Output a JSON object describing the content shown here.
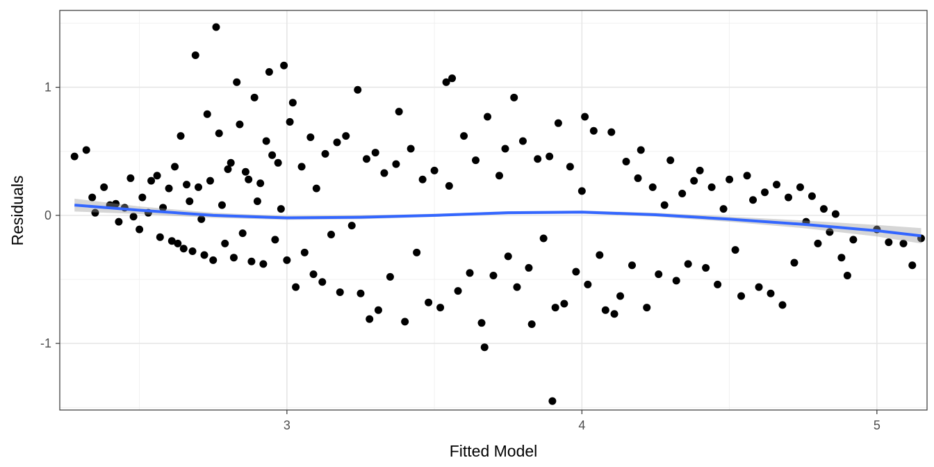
{
  "chart_data": {
    "type": "scatter",
    "title": "",
    "xlabel": "Fitted Model",
    "ylabel": "Residuals",
    "xlim": [
      2.23,
      5.17
    ],
    "ylim": [
      -1.52,
      1.6
    ],
    "x_ticks": [
      3,
      4,
      5
    ],
    "x_tick_labels": [
      "3",
      "4",
      "5"
    ],
    "y_ticks": [
      -1,
      0,
      1
    ],
    "y_tick_labels": [
      "-1",
      "0",
      "1"
    ],
    "grid": true,
    "legend": "none",
    "point_color": "#000000",
    "smooth_color": "#3366ff",
    "band_color": "#999999",
    "points_note": "dense cloud of ~1500 residual points; representative subset listed",
    "points": [
      [
        2.28,
        0.46
      ],
      [
        2.32,
        0.51
      ],
      [
        2.34,
        0.14
      ],
      [
        2.35,
        0.02
      ],
      [
        2.38,
        0.22
      ],
      [
        2.4,
        0.08
      ],
      [
        2.42,
        0.09
      ],
      [
        2.43,
        -0.05
      ],
      [
        2.45,
        0.06
      ],
      [
        2.47,
        0.29
      ],
      [
        2.48,
        -0.01
      ],
      [
        2.5,
        -0.11
      ],
      [
        2.51,
        0.14
      ],
      [
        2.53,
        0.02
      ],
      [
        2.54,
        0.27
      ],
      [
        2.56,
        0.31
      ],
      [
        2.57,
        -0.17
      ],
      [
        2.58,
        0.06
      ],
      [
        2.6,
        0.21
      ],
      [
        2.61,
        -0.2
      ],
      [
        2.62,
        0.38
      ],
      [
        2.63,
        -0.22
      ],
      [
        2.64,
        0.62
      ],
      [
        2.65,
        -0.26
      ],
      [
        2.66,
        0.24
      ],
      [
        2.67,
        0.11
      ],
      [
        2.68,
        -0.28
      ],
      [
        2.69,
        1.25
      ],
      [
        2.7,
        0.22
      ],
      [
        2.71,
        -0.03
      ],
      [
        2.72,
        -0.31
      ],
      [
        2.73,
        0.79
      ],
      [
        2.74,
        0.27
      ],
      [
        2.75,
        -0.35
      ],
      [
        2.76,
        1.47
      ],
      [
        2.77,
        0.64
      ],
      [
        2.78,
        0.08
      ],
      [
        2.79,
        -0.22
      ],
      [
        2.8,
        0.36
      ],
      [
        2.81,
        0.41
      ],
      [
        2.82,
        -0.33
      ],
      [
        2.83,
        1.04
      ],
      [
        2.84,
        0.71
      ],
      [
        2.85,
        -0.14
      ],
      [
        2.86,
        0.34
      ],
      [
        2.87,
        0.28
      ],
      [
        2.88,
        -0.36
      ],
      [
        2.89,
        0.92
      ],
      [
        2.9,
        0.11
      ],
      [
        2.91,
        0.25
      ],
      [
        2.92,
        -0.38
      ],
      [
        2.93,
        0.58
      ],
      [
        2.94,
        1.12
      ],
      [
        2.95,
        0.47
      ],
      [
        2.96,
        -0.19
      ],
      [
        2.97,
        0.41
      ],
      [
        2.98,
        0.05
      ],
      [
        2.99,
        1.17
      ],
      [
        3.0,
        -0.35
      ],
      [
        3.01,
        0.73
      ],
      [
        3.02,
        0.88
      ],
      [
        3.03,
        -0.56
      ],
      [
        3.05,
        0.38
      ],
      [
        3.06,
        -0.29
      ],
      [
        3.08,
        0.61
      ],
      [
        3.09,
        -0.46
      ],
      [
        3.1,
        0.21
      ],
      [
        3.12,
        -0.52
      ],
      [
        3.13,
        0.48
      ],
      [
        3.15,
        -0.15
      ],
      [
        3.17,
        0.57
      ],
      [
        3.18,
        -0.6
      ],
      [
        3.2,
        0.62
      ],
      [
        3.22,
        -0.08
      ],
      [
        3.24,
        0.98
      ],
      [
        3.25,
        -0.61
      ],
      [
        3.27,
        0.44
      ],
      [
        3.28,
        -0.81
      ],
      [
        3.3,
        0.49
      ],
      [
        3.31,
        -0.74
      ],
      [
        3.33,
        0.33
      ],
      [
        3.35,
        -0.48
      ],
      [
        3.37,
        0.4
      ],
      [
        3.38,
        0.81
      ],
      [
        3.4,
        -0.83
      ],
      [
        3.42,
        0.52
      ],
      [
        3.44,
        -0.29
      ],
      [
        3.46,
        0.28
      ],
      [
        3.48,
        -0.68
      ],
      [
        3.5,
        0.35
      ],
      [
        3.52,
        -0.72
      ],
      [
        3.54,
        1.04
      ],
      [
        3.55,
        0.23
      ],
      [
        3.56,
        1.07
      ],
      [
        3.58,
        -0.59
      ],
      [
        3.6,
        0.62
      ],
      [
        3.62,
        -0.45
      ],
      [
        3.64,
        0.43
      ],
      [
        3.66,
        -0.84
      ],
      [
        3.67,
        -1.03
      ],
      [
        3.68,
        0.77
      ],
      [
        3.7,
        -0.47
      ],
      [
        3.72,
        0.31
      ],
      [
        3.74,
        0.52
      ],
      [
        3.75,
        -0.32
      ],
      [
        3.77,
        0.92
      ],
      [
        3.78,
        -0.56
      ],
      [
        3.8,
        0.58
      ],
      [
        3.82,
        -0.41
      ],
      [
        3.83,
        -0.85
      ],
      [
        3.85,
        0.44
      ],
      [
        3.87,
        -0.18
      ],
      [
        3.89,
        0.46
      ],
      [
        3.9,
        -1.45
      ],
      [
        3.91,
        -0.72
      ],
      [
        3.92,
        0.72
      ],
      [
        3.94,
        -0.69
      ],
      [
        3.96,
        0.38
      ],
      [
        3.98,
        -0.44
      ],
      [
        4.0,
        0.19
      ],
      [
        4.01,
        0.77
      ],
      [
        4.02,
        -0.54
      ],
      [
        4.04,
        0.66
      ],
      [
        4.06,
        -0.31
      ],
      [
        4.08,
        -0.74
      ],
      [
        4.1,
        0.65
      ],
      [
        4.11,
        -0.77
      ],
      [
        4.13,
        -0.63
      ],
      [
        4.15,
        0.42
      ],
      [
        4.17,
        -0.39
      ],
      [
        4.19,
        0.29
      ],
      [
        4.2,
        0.51
      ],
      [
        4.22,
        -0.72
      ],
      [
        4.24,
        0.22
      ],
      [
        4.26,
        -0.46
      ],
      [
        4.28,
        0.08
      ],
      [
        4.3,
        0.43
      ],
      [
        4.32,
        -0.51
      ],
      [
        4.34,
        0.17
      ],
      [
        4.36,
        -0.38
      ],
      [
        4.38,
        0.27
      ],
      [
        4.4,
        0.35
      ],
      [
        4.42,
        -0.41
      ],
      [
        4.44,
        0.22
      ],
      [
        4.46,
        -0.54
      ],
      [
        4.48,
        0.05
      ],
      [
        4.5,
        0.28
      ],
      [
        4.52,
        -0.27
      ],
      [
        4.54,
        -0.63
      ],
      [
        4.56,
        0.31
      ],
      [
        4.58,
        0.12
      ],
      [
        4.6,
        -0.56
      ],
      [
        4.62,
        0.18
      ],
      [
        4.64,
        -0.61
      ],
      [
        4.66,
        0.24
      ],
      [
        4.68,
        -0.7
      ],
      [
        4.7,
        0.14
      ],
      [
        4.72,
        -0.37
      ],
      [
        4.74,
        0.22
      ],
      [
        4.76,
        -0.05
      ],
      [
        4.78,
        0.15
      ],
      [
        4.8,
        -0.22
      ],
      [
        4.82,
        0.05
      ],
      [
        4.84,
        -0.13
      ],
      [
        4.86,
        0.01
      ],
      [
        4.88,
        -0.33
      ],
      [
        4.9,
        -0.47
      ],
      [
        4.92,
        -0.19
      ],
      [
        5.0,
        -0.11
      ],
      [
        5.04,
        -0.21
      ],
      [
        5.09,
        -0.22
      ],
      [
        5.12,
        -0.39
      ],
      [
        5.15,
        -0.18
      ]
    ],
    "smooth": {
      "x": [
        2.28,
        2.5,
        2.75,
        3.0,
        3.25,
        3.5,
        3.75,
        4.0,
        4.25,
        4.5,
        4.75,
        5.0,
        5.15
      ],
      "y": [
        0.08,
        0.04,
        0.0,
        -0.02,
        -0.015,
        0.0,
        0.02,
        0.025,
        0.005,
        -0.03,
        -0.07,
        -0.12,
        -0.16
      ],
      "se": [
        0.05,
        0.03,
        0.02,
        0.015,
        0.015,
        0.012,
        0.012,
        0.012,
        0.015,
        0.02,
        0.03,
        0.045,
        0.06
      ]
    }
  }
}
